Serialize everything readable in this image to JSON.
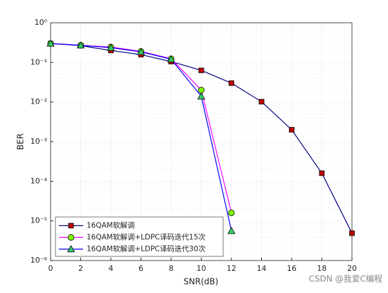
{
  "chart_data": {
    "type": "line",
    "x_label": "SNR(dB)",
    "y_label": "BER",
    "log_y": true,
    "grid": true,
    "legend_position": "lower left",
    "xlim": [
      0,
      20
    ],
    "xticks": [
      0,
      2,
      4,
      6,
      8,
      10,
      12,
      14,
      16,
      18,
      20
    ],
    "ylim": [
      1e-06,
      1
    ],
    "yticks": [
      {
        "value": 1e-06,
        "label": "10⁻⁶"
      },
      {
        "value": 1e-05,
        "label": "10⁻⁵"
      },
      {
        "value": 0.0001,
        "label": "10⁻⁴"
      },
      {
        "value": 0.001,
        "label": "10⁻³"
      },
      {
        "value": 0.01,
        "label": "10⁻²"
      },
      {
        "value": 0.1,
        "label": "10⁻¹"
      },
      {
        "value": 1,
        "label": "10⁰"
      }
    ],
    "series": [
      {
        "name": "16QAM软解调",
        "color": "#000080",
        "marker": "square",
        "marker_color": "#c00000",
        "x": [
          0,
          2,
          4,
          6,
          8,
          10,
          12,
          14,
          16,
          18,
          20
        ],
        "values": [
          0.3,
          0.265,
          0.2,
          0.157,
          0.105,
          0.063,
          0.03,
          0.0102,
          0.002,
          0.00016,
          4.9e-06
        ]
      },
      {
        "name": "16QAM软解调+LDPC译码迭代15次",
        "color": "#ff00ff",
        "marker": "circle",
        "marker_color": "#80ff00",
        "x": [
          0,
          2,
          4,
          6,
          8,
          10,
          12
        ],
        "values": [
          0.3,
          0.27,
          0.245,
          0.19,
          0.124,
          0.02,
          1.6e-05
        ]
      },
      {
        "name": "16QAM软解调+LDPC译码迭代30次",
        "color": "#0000ff",
        "marker": "triangle",
        "marker_color": "#33cc66",
        "x": [
          0,
          2,
          4,
          6,
          8,
          10,
          12
        ],
        "values": [
          0.3,
          0.27,
          0.235,
          0.185,
          0.12,
          0.014,
          5.6e-06
        ]
      }
    ],
    "watermark": "CSDN @我爱C编程"
  }
}
